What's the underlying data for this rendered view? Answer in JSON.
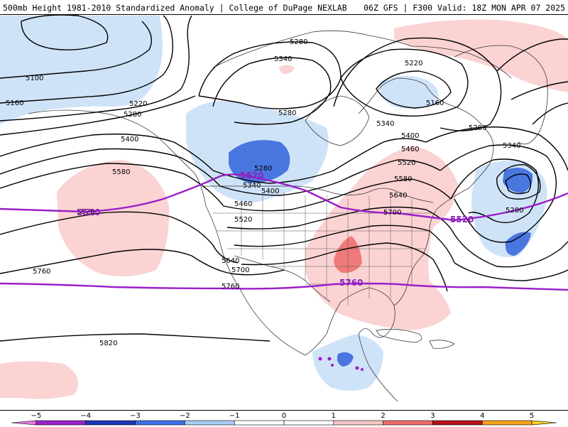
{
  "header": {
    "left": "500mb Height 1981-2010 Standardized Anomaly | College of DuPage NEXLAB",
    "right": "06Z GFS | F300 Valid: 18Z MON APR 07 2025"
  },
  "colors": {
    "ridge_key": "#9a1fc9",
    "contour": "#000000",
    "coast": "#3a3a3a"
  },
  "contour_labels": [
    {
      "text": "5280"
    },
    {
      "text": "5340"
    },
    {
      "text": "5220"
    },
    {
      "text": "5100"
    },
    {
      "text": "5160"
    },
    {
      "text": "5220"
    },
    {
      "text": "5280"
    },
    {
      "text": "5400"
    },
    {
      "text": "5580"
    },
    {
      "text": "5520"
    },
    {
      "text": "5280"
    },
    {
      "text": "5340"
    },
    {
      "text": "5400"
    },
    {
      "text": "5460"
    },
    {
      "text": "5520"
    },
    {
      "text": "5640"
    },
    {
      "text": "5700"
    },
    {
      "text": "5760"
    },
    {
      "text": "5760"
    },
    {
      "text": "5820"
    },
    {
      "text": "5280"
    },
    {
      "text": "5160"
    },
    {
      "text": "5280"
    },
    {
      "text": "5340"
    },
    {
      "text": "5400"
    },
    {
      "text": "5460"
    },
    {
      "text": "5520"
    },
    {
      "text": "5580"
    },
    {
      "text": "5640"
    },
    {
      "text": "5700"
    },
    {
      "text": "5340"
    },
    {
      "text": "5280"
    }
  ],
  "key_contours": [
    {
      "value": "5520"
    },
    {
      "value": "5520"
    },
    {
      "value": "5520"
    },
    {
      "value": "5760"
    }
  ],
  "colorbar": {
    "ticks": [
      "−5",
      "−4",
      "−3",
      "−2",
      "−1",
      "0",
      "1",
      "2",
      "3",
      "4",
      "5"
    ],
    "bins": [
      {
        "from": -5,
        "to": -4,
        "color": "#9b22c9"
      },
      {
        "from": -4,
        "to": -3,
        "color": "#1d33b8"
      },
      {
        "from": -3,
        "to": -2,
        "color": "#3f6fe8"
      },
      {
        "from": -2,
        "to": -1,
        "color": "#a9cdf5"
      },
      {
        "from": -1,
        "to": 0,
        "color": "#ffffff"
      },
      {
        "from": 0,
        "to": 1,
        "color": "#ffffff"
      },
      {
        "from": 1,
        "to": 2,
        "color": "#f9c5c5"
      },
      {
        "from": 2,
        "to": 3,
        "color": "#f06a6a"
      },
      {
        "from": 3,
        "to": 4,
        "color": "#b8101a"
      },
      {
        "from": 4,
        "to": 5,
        "color": "#f7a21a"
      }
    ],
    "end_low_color": "#e37be3",
    "end_high_color": "#f7d22a"
  }
}
